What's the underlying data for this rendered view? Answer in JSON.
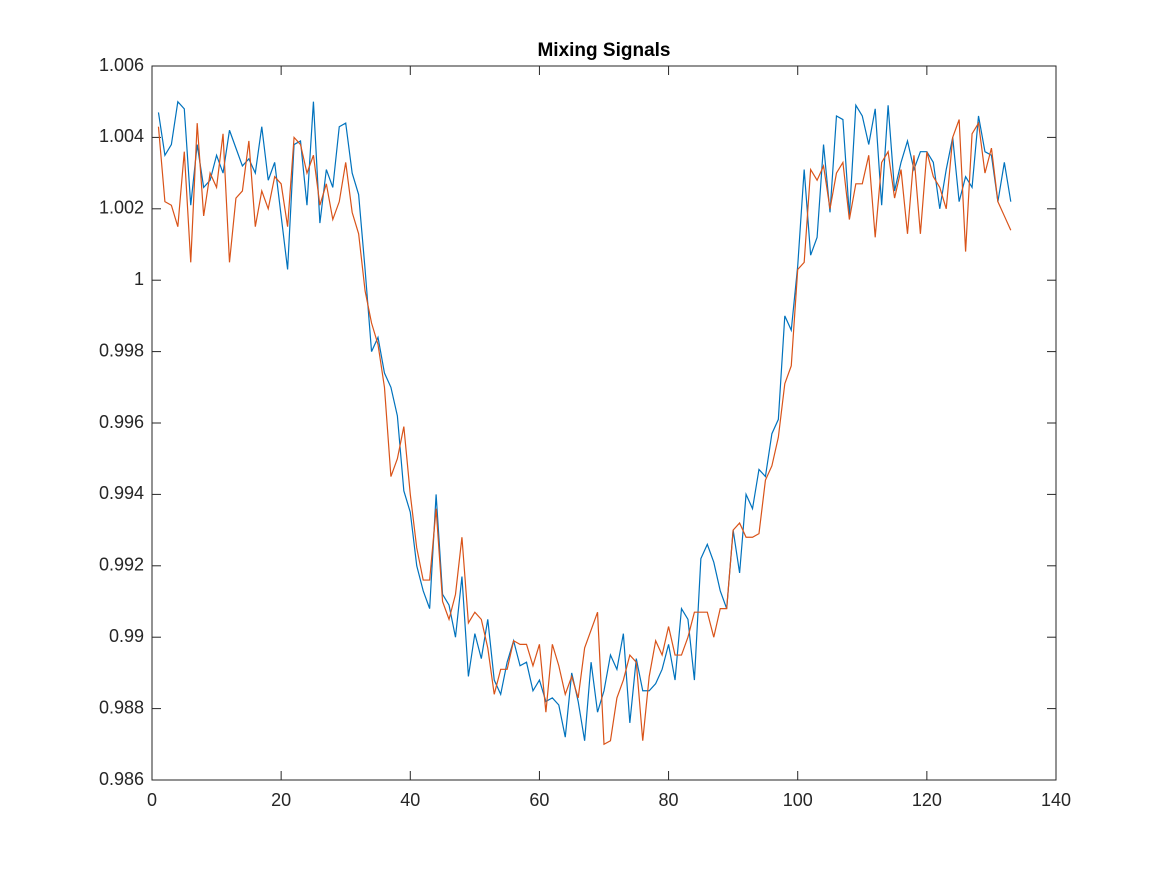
{
  "chart_data": {
    "type": "line",
    "title": "Mixing Signals",
    "x": [
      1,
      2,
      3,
      4,
      5,
      6,
      7,
      8,
      9,
      10,
      11,
      12,
      13,
      14,
      15,
      16,
      17,
      18,
      19,
      20,
      21,
      22,
      23,
      24,
      25,
      26,
      27,
      28,
      29,
      30,
      31,
      32,
      33,
      34,
      35,
      36,
      37,
      38,
      39,
      40,
      41,
      42,
      43,
      44,
      45,
      46,
      47,
      48,
      49,
      50,
      51,
      52,
      53,
      54,
      55,
      56,
      57,
      58,
      59,
      60,
      61,
      62,
      63,
      64,
      65,
      66,
      67,
      68,
      69,
      70,
      71,
      72,
      73,
      74,
      75,
      76,
      77,
      78,
      79,
      80,
      81,
      82,
      83,
      84,
      85,
      86,
      87,
      88,
      89,
      90,
      91,
      92,
      93,
      94,
      95,
      96,
      97,
      98,
      99,
      100,
      101,
      102,
      103,
      104,
      105,
      106,
      107,
      108,
      109,
      110,
      111,
      112,
      113,
      114,
      115,
      116,
      117,
      118,
      119,
      120,
      121,
      122,
      123,
      124,
      125,
      126,
      127,
      128,
      129,
      130,
      131,
      132,
      133
    ],
    "series": [
      {
        "color": "#0072BD",
        "values": [
          1.0047,
          1.0035,
          1.0038,
          1.005,
          1.0048,
          1.0021,
          1.0038,
          1.0026,
          1.0028,
          1.0035,
          1.003,
          1.0042,
          1.0037,
          1.0032,
          1.0034,
          1.003,
          1.0043,
          1.0028,
          1.0033,
          1.0018,
          1.0003,
          1.0038,
          1.0039,
          1.0021,
          1.005,
          1.0016,
          1.0031,
          1.0026,
          1.0043,
          1.0044,
          1.003,
          1.0024,
          1.0003,
          0.998,
          0.9984,
          0.9974,
          0.997,
          0.9962,
          0.9941,
          0.9935,
          0.992,
          0.9913,
          0.9908,
          0.994,
          0.9912,
          0.9909,
          0.99,
          0.9917,
          0.9889,
          0.9901,
          0.9894,
          0.9905,
          0.9888,
          0.9884,
          0.9893,
          0.9899,
          0.9892,
          0.9893,
          0.9885,
          0.9888,
          0.9882,
          0.9883,
          0.9881,
          0.9872,
          0.989,
          0.9882,
          0.9871,
          0.9893,
          0.9879,
          0.9885,
          0.9895,
          0.9891,
          0.9901,
          0.9876,
          0.9894,
          0.9885,
          0.9885,
          0.9887,
          0.9891,
          0.9898,
          0.9888,
          0.9908,
          0.9905,
          0.9888,
          0.9922,
          0.9926,
          0.9921,
          0.9913,
          0.9908,
          0.993,
          0.9918,
          0.994,
          0.9936,
          0.9947,
          0.9945,
          0.9957,
          0.9961,
          0.999,
          0.9986,
          1.0004,
          1.0031,
          1.0007,
          1.0012,
          1.0038,
          1.0019,
          1.0046,
          1.0045,
          1.0018,
          1.0049,
          1.0046,
          1.0038,
          1.0048,
          1.0021,
          1.0049,
          1.0025,
          1.0033,
          1.0039,
          1.0031,
          1.0036,
          1.0036,
          1.0033,
          1.002,
          1.0031,
          1.004,
          1.0022,
          1.0029,
          1.0026,
          1.0046,
          1.0036,
          1.0035,
          1.0022,
          1.0033,
          1.0022
        ]
      },
      {
        "color": "#D95319",
        "values": [
          1.0043,
          1.0022,
          1.0021,
          1.0015,
          1.0036,
          1.0005,
          1.0044,
          1.0018,
          1.003,
          1.0026,
          1.0041,
          1.0005,
          1.0023,
          1.0025,
          1.0039,
          1.0015,
          1.0025,
          1.002,
          1.0029,
          1.0027,
          1.0015,
          1.004,
          1.0038,
          1.003,
          1.0035,
          1.0021,
          1.0027,
          1.0017,
          1.0022,
          1.0033,
          1.0019,
          1.0013,
          0.9997,
          0.9988,
          0.9982,
          0.997,
          0.9945,
          0.995,
          0.9959,
          0.994,
          0.9925,
          0.9916,
          0.9916,
          0.9936,
          0.991,
          0.9905,
          0.9912,
          0.9928,
          0.9904,
          0.9907,
          0.9905,
          0.9897,
          0.9884,
          0.9891,
          0.9891,
          0.9899,
          0.9898,
          0.9898,
          0.9892,
          0.9898,
          0.9879,
          0.9898,
          0.9892,
          0.9884,
          0.9889,
          0.9883,
          0.9897,
          0.9902,
          0.9907,
          0.987,
          0.9871,
          0.9883,
          0.9888,
          0.9895,
          0.9893,
          0.9871,
          0.9889,
          0.9899,
          0.9895,
          0.9903,
          0.9895,
          0.9895,
          0.99,
          0.9907,
          0.9907,
          0.9907,
          0.99,
          0.9908,
          0.9908,
          0.993,
          0.9932,
          0.9928,
          0.9928,
          0.9929,
          0.9944,
          0.9948,
          0.9956,
          0.9971,
          0.9976,
          1.0003,
          1.0005,
          1.0031,
          1.0028,
          1.0032,
          1.002,
          1.003,
          1.0033,
          1.0017,
          1.0027,
          1.0027,
          1.0035,
          1.0012,
          1.0033,
          1.0036,
          1.0023,
          1.0031,
          1.0013,
          1.0035,
          1.0013,
          1.0036,
          1.0029,
          1.0026,
          1.002,
          1.004,
          1.0045,
          1.0008,
          1.0041,
          1.0044,
          1.003,
          1.0037,
          1.0022,
          1.0018,
          1.0014
        ]
      }
    ],
    "xlim": [
      0,
      140
    ],
    "xticks": [
      0,
      20,
      40,
      60,
      80,
      100,
      120,
      140
    ],
    "ylim": [
      0.986,
      1.006
    ],
    "yticks": [
      0.986,
      0.988,
      0.99,
      0.992,
      0.994,
      0.996,
      0.998,
      1,
      1.002,
      1.004,
      1.006
    ],
    "grid": false
  }
}
